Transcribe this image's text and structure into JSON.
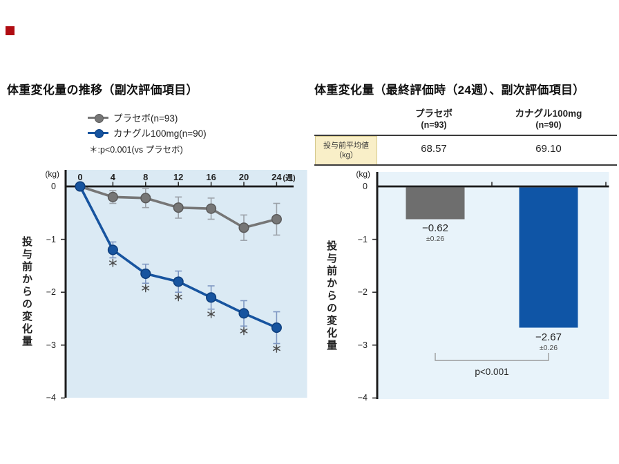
{
  "figure": {
    "left_kg_unit": "(kg)",
    "right_kg_unit": "(kg)"
  },
  "chart_data": [
    {
      "type": "line",
      "title": "体重変化量の推移（副次評価項目）",
      "ylabel": "投与前からの変化量",
      "yunit": "(kg)",
      "xunit": "(週)",
      "x": [
        0,
        4,
        8,
        12,
        16,
        20,
        24
      ],
      "ylim": [
        -4,
        0
      ],
      "yticks": [
        0,
        -1,
        -2,
        -3,
        -4
      ],
      "grid": false,
      "legend_position": "top",
      "series": [
        {
          "name": "プラセボ(n=93)",
          "color": "#767676",
          "point_edge": "#5a5a5a",
          "err_color": "#9ba1a8",
          "values": [
            0,
            -0.2,
            -0.22,
            -0.4,
            -0.42,
            -0.78,
            -0.62
          ],
          "err": [
            0,
            0.12,
            0.18,
            0.2,
            0.2,
            0.24,
            0.3
          ]
        },
        {
          "name": "カナグル100mg(n=90)",
          "color": "#17549f",
          "point_edge": "#0d3e7d",
          "err_color": "#7e97c2",
          "values": [
            0,
            -1.2,
            -1.65,
            -1.8,
            -2.1,
            -2.4,
            -2.67
          ],
          "err": [
            0,
            0.15,
            0.18,
            0.2,
            0.22,
            0.24,
            0.3
          ],
          "sig_marker": "＊",
          "sig_from_index": 1
        }
      ],
      "note": "＊:p<0.001(vs プラセボ)"
    },
    {
      "type": "bar",
      "title": "体重変化量（最終評価時（24週）、副次評価項目）",
      "ylabel": "投与前からの変化量",
      "yunit": "(kg)",
      "ylim": [
        -4,
        0
      ],
      "yticks": [
        0,
        -1,
        -2,
        -3,
        -4
      ],
      "categories": [
        "プラセボ",
        "カナグル100mg"
      ],
      "category_ns": [
        "(n=93)",
        "(n=90)"
      ],
      "values": [
        -0.62,
        -2.67
      ],
      "value_labels": [
        "−0.62",
        "−2.67"
      ],
      "se_labels": [
        "±0.26",
        "±0.26"
      ],
      "colors": [
        "#6e6e6e",
        "#0f55a6"
      ],
      "baseline_row_label": "投与前平均値",
      "baseline_row_unit": "（kg）",
      "baseline_values": [
        "68.57",
        "69.10"
      ],
      "p_label": "p<0.001"
    }
  ]
}
